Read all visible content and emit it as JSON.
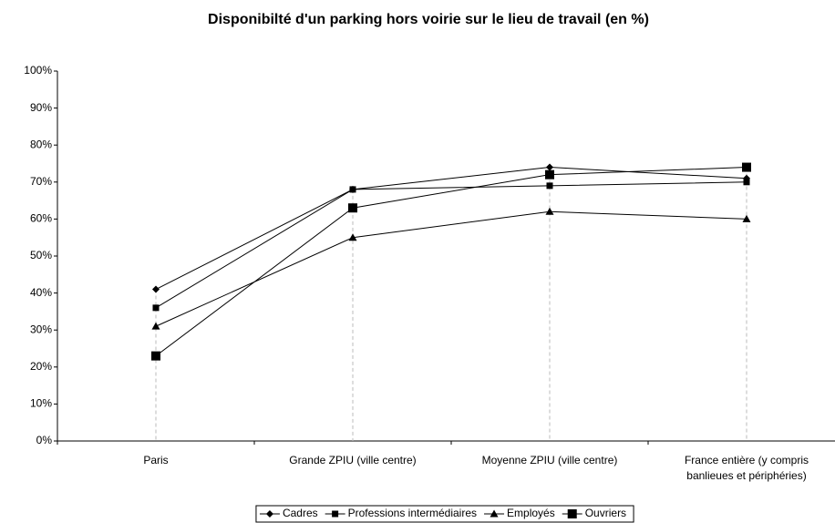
{
  "chart_data": {
    "type": "line",
    "title": "Disponibilté d'un parking hors voirie sur le lieu de travail (en %)",
    "categories": [
      "Paris",
      "Grande ZPIU (ville centre)",
      "Moyenne ZPIU (ville centre)",
      "France entière (y compris banlieues et périphéries)"
    ],
    "series": [
      {
        "name": "Cadres",
        "color": "#000000",
        "marker": "diamond",
        "values": [
          41,
          68,
          74,
          71
        ]
      },
      {
        "name": "Professions intermédiaires",
        "color": "#000000",
        "marker": "square",
        "values": [
          36,
          68,
          69,
          70
        ]
      },
      {
        "name": "Employés",
        "color": "#000000",
        "marker": "triangle",
        "values": [
          31,
          55,
          62,
          60
        ]
      },
      {
        "name": "Ouvriers",
        "color": "#000000",
        "marker": "big-square",
        "values": [
          23,
          63,
          72,
          74
        ]
      }
    ],
    "ylim": [
      0,
      100
    ],
    "yticks": [
      {
        "value": 0,
        "label": "0%"
      },
      {
        "value": 10,
        "label": "10%"
      },
      {
        "value": 20,
        "label": "20%"
      },
      {
        "value": 30,
        "label": "30%"
      },
      {
        "value": 40,
        "label": "40%"
      },
      {
        "value": 50,
        "label": "50%"
      },
      {
        "value": 60,
        "label": "60%"
      },
      {
        "value": 70,
        "label": "70%"
      },
      {
        "value": 80,
        "label": "80%"
      },
      {
        "value": 90,
        "label": "90%"
      },
      {
        "value": 100,
        "label": "100%"
      }
    ],
    "drop_lines": true,
    "legend": "bottom"
  }
}
